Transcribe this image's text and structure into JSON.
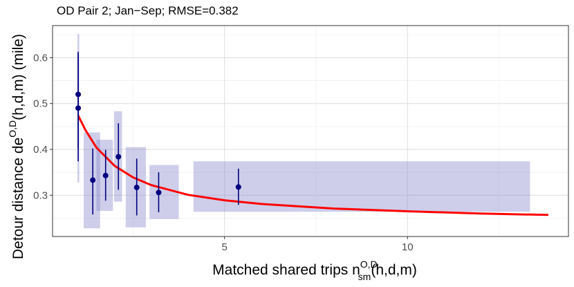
{
  "chart_data": {
    "type": "scatter",
    "title": "OD Pair 2; Jan−Sep; RMSE=0.382",
    "xlabel": {
      "prefix": "Matched shared trips n",
      "sup": "O,D",
      "sub": "sm",
      "suffix": "(h,d,m)"
    },
    "ylabel": {
      "prefix": "Detour distance de",
      "sup": "O,D",
      "suffix": "(h,d,m) (mile)"
    },
    "xlim": [
      0.3,
      14.4
    ],
    "ylim": [
      0.21,
      0.67
    ],
    "x_ticks": [
      5,
      10
    ],
    "y_ticks": [
      0.3,
      0.4,
      0.5,
      0.6
    ],
    "y_tick_labels": [
      "0.3",
      "0.4",
      "0.5",
      "0.6"
    ],
    "grid": true,
    "colors": {
      "points": "#00007f",
      "errorbars": "#00007f",
      "rectangles": "#8b8bcc",
      "fit": "#ff0000"
    },
    "points": [
      {
        "x": 1.0,
        "y": 0.49,
        "ymin": 0.374,
        "ymax": 0.607
      },
      {
        "x": 1.0,
        "y": 0.52,
        "ymin": 0.402,
        "ymax": 0.613
      },
      {
        "x": 1.4,
        "y": 0.333,
        "ymin": 0.258,
        "ymax": 0.402
      },
      {
        "x": 1.75,
        "y": 0.343,
        "ymin": 0.288,
        "ymax": 0.399
      },
      {
        "x": 2.1,
        "y": 0.384,
        "ymin": 0.312,
        "ymax": 0.457
      },
      {
        "x": 2.6,
        "y": 0.317,
        "ymin": 0.256,
        "ymax": 0.38
      },
      {
        "x": 3.2,
        "y": 0.306,
        "ymin": 0.263,
        "ymax": 0.35
      },
      {
        "x": 5.38,
        "y": 0.318,
        "ymin": 0.279,
        "ymax": 0.358
      }
    ],
    "rectangles": [
      {
        "xmin": 0.98,
        "xmax": 1.03,
        "ymin": 0.328,
        "ymax": 0.652
      },
      {
        "xmin": 1.15,
        "xmax": 1.6,
        "ymin": 0.228,
        "ymax": 0.437
      },
      {
        "xmin": 1.5,
        "xmax": 1.95,
        "ymin": 0.266,
        "ymax": 0.421
      },
      {
        "xmin": 1.98,
        "xmax": 2.2,
        "ymin": 0.286,
        "ymax": 0.483
      },
      {
        "xmin": 2.3,
        "xmax": 2.85,
        "ymin": 0.23,
        "ymax": 0.405
      },
      {
        "xmin": 2.95,
        "xmax": 3.75,
        "ymin": 0.248,
        "ymax": 0.366
      },
      {
        "xmin": 4.15,
        "xmax": 13.35,
        "ymin": 0.264,
        "ymax": 0.374
      }
    ],
    "fit_curve": {
      "description_type": "power",
      "x": [
        1.0,
        1.2,
        1.5,
        2.0,
        2.5,
        3.0,
        4.0,
        5.0,
        6.0,
        8.0,
        10.0,
        12.0,
        13.85
      ],
      "y": [
        0.474,
        0.442,
        0.404,
        0.364,
        0.339,
        0.322,
        0.301,
        0.289,
        0.281,
        0.271,
        0.265,
        0.26,
        0.257
      ]
    }
  }
}
